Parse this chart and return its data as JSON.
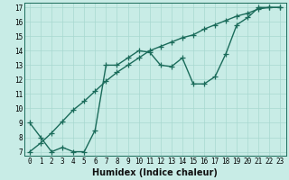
{
  "xlabel": "Humidex (Indice chaleur)",
  "ylabel": "",
  "bg_color": "#c8ece6",
  "line_color": "#1a6b5a",
  "grid_color": "#a8d8d0",
  "xlim": [
    -0.5,
    23.5
  ],
  "ylim": [
    6.7,
    17.3
  ],
  "xticks": [
    0,
    1,
    2,
    3,
    4,
    5,
    6,
    7,
    8,
    9,
    10,
    11,
    12,
    13,
    14,
    15,
    16,
    17,
    18,
    19,
    20,
    21,
    22,
    23
  ],
  "yticks": [
    7,
    8,
    9,
    10,
    11,
    12,
    13,
    14,
    15,
    16,
    17
  ],
  "line1_x": [
    0,
    1,
    2,
    3,
    4,
    5,
    6,
    7,
    8,
    9,
    10,
    11,
    12,
    13,
    14,
    15,
    16,
    17,
    18,
    19,
    20,
    21,
    22,
    23
  ],
  "line1_y": [
    9,
    8,
    7,
    7.3,
    7,
    7,
    8.5,
    13,
    13,
    13.5,
    14,
    13.9,
    13,
    12.9,
    13.5,
    11.7,
    11.7,
    12.2,
    13.8,
    15.8,
    16.3,
    17,
    17,
    17
  ],
  "line2_x": [
    0,
    1,
    2,
    3,
    4,
    5,
    6,
    7,
    8,
    9,
    10,
    11,
    12,
    13,
    14,
    15,
    16,
    17,
    18,
    19,
    20,
    21,
    22,
    23
  ],
  "line2_y": [
    7,
    7.6,
    8.3,
    9.1,
    9.9,
    10.5,
    11.2,
    11.9,
    12.5,
    13.0,
    13.5,
    14.0,
    14.3,
    14.6,
    14.9,
    15.1,
    15.5,
    15.8,
    16.1,
    16.4,
    16.6,
    16.9,
    17.0,
    17.0
  ],
  "marker": "+",
  "markersize": 4,
  "linewidth": 1.0,
  "tick_fontsize": 5.5,
  "label_fontsize": 7,
  "title_fontsize": 7
}
